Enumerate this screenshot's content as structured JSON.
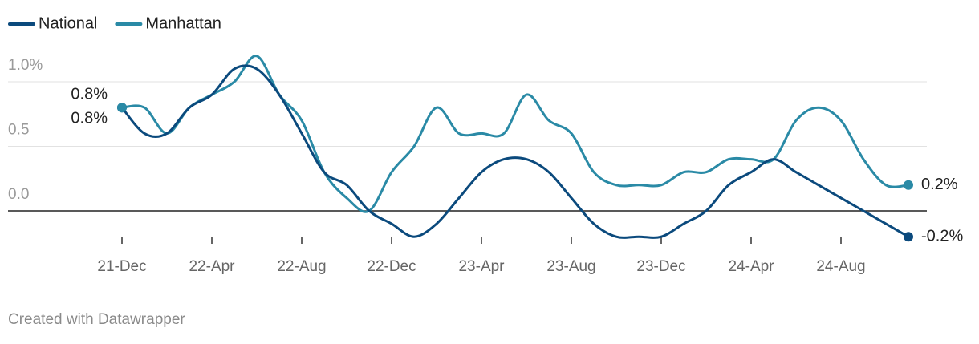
{
  "chart_data": {
    "type": "line",
    "categories": [
      "21-Dec",
      null,
      null,
      null,
      "22-Apr",
      null,
      null,
      null,
      "22-Aug",
      null,
      null,
      null,
      "22-Dec",
      null,
      null,
      null,
      "23-Apr",
      null,
      null,
      null,
      "23-Aug",
      null,
      null,
      null,
      "23-Dec",
      null,
      null,
      null,
      "24-Apr",
      null,
      null,
      null,
      "24-Aug",
      null,
      null,
      null
    ],
    "series": [
      {
        "name": "National",
        "color": "#0b4a7d",
        "values": [
          0.8,
          0.6,
          0.6,
          0.8,
          0.9,
          1.1,
          1.1,
          0.9,
          0.6,
          0.3,
          0.2,
          0.0,
          -0.1,
          -0.2,
          -0.1,
          0.1,
          0.3,
          0.4,
          0.4,
          0.3,
          0.1,
          -0.1,
          -0.2,
          -0.2,
          -0.2,
          -0.1,
          0.0,
          0.2,
          0.3,
          0.4,
          0.3,
          0.2,
          0.1,
          0.0,
          -0.1,
          -0.2
        ],
        "value_labels": [
          "0.8%",
          null,
          null,
          null,
          null,
          null,
          null,
          null,
          null,
          null,
          null,
          null,
          null,
          null,
          null,
          null,
          null,
          null,
          null,
          null,
          null,
          null,
          null,
          null,
          null,
          null,
          null,
          null,
          null,
          null,
          null,
          null,
          null,
          null,
          null,
          "-0.2%"
        ]
      },
      {
        "name": "Manhattan",
        "color": "#2a8aa6",
        "values": [
          0.8,
          0.8,
          0.6,
          0.8,
          0.9,
          1.0,
          1.2,
          0.9,
          0.7,
          0.3,
          0.1,
          0.0,
          0.3,
          0.5,
          0.8,
          0.6,
          0.6,
          0.6,
          0.9,
          0.7,
          0.6,
          0.3,
          0.2,
          0.2,
          0.2,
          0.3,
          0.3,
          0.4,
          0.4,
          0.4,
          0.7,
          0.8,
          0.7,
          0.4,
          0.2,
          0.2
        ],
        "value_labels": [
          "0.8%",
          null,
          null,
          null,
          null,
          null,
          null,
          null,
          null,
          null,
          null,
          null,
          null,
          null,
          null,
          null,
          null,
          null,
          null,
          null,
          null,
          null,
          null,
          null,
          null,
          null,
          null,
          null,
          null,
          null,
          null,
          null,
          null,
          null,
          null,
          "0.2%"
        ]
      }
    ],
    "ylim": [
      -0.2,
      1.2
    ],
    "yticks": [
      {
        "value": 0,
        "label": "0.0"
      },
      {
        "value": 0.5,
        "label": "0.5"
      },
      {
        "value": 1,
        "label": "1.0%"
      }
    ],
    "grid": true,
    "legend": "top-left",
    "footer": "Created with Datawrapper"
  }
}
